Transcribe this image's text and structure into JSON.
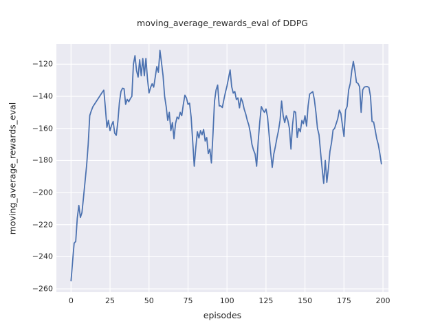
{
  "title": "moving_average_rewards_eval of DDPG",
  "chart_data": {
    "type": "line",
    "title": "moving_average_rewards_eval of DDPG",
    "xlabel": "episodes",
    "ylabel": "moving_average_rewards_eval",
    "x_ticks": [
      0,
      25,
      50,
      75,
      100,
      125,
      150,
      175,
      200
    ],
    "y_ticks": [
      -120,
      -140,
      -160,
      -180,
      -200,
      -220,
      -240,
      -260
    ],
    "xlim": [
      -9.4,
      203.5
    ],
    "ylim": [
      -262.1,
      -107.4
    ],
    "grid": true,
    "legend": false,
    "grid_color": "#ffffff",
    "axes_background": "#eaeaf2",
    "line_color": "#4c72b0",
    "series": [
      {
        "name": "moving_average_rewards_eval",
        "x_is_index": true,
        "values": [
          -255.0,
          -243.0,
          -231.5,
          -230.5,
          -216.0,
          -208.0,
          -215.5,
          -212.5,
          -203.0,
          -193.0,
          -183.0,
          -170.0,
          -152.0,
          -149.0,
          -146.5,
          -145.0,
          -143.5,
          -142.0,
          -140.5,
          -139.0,
          -137.5,
          -136.2,
          -147.0,
          -159.3,
          -155.0,
          -161.4,
          -158.0,
          -155.7,
          -163.0,
          -164.3,
          -156.0,
          -144.0,
          -137.0,
          -135.0,
          -135.3,
          -145.0,
          -141.9,
          -143.4,
          -141.5,
          -140.0,
          -120.0,
          -114.7,
          -124.0,
          -128.0,
          -117.2,
          -127.2,
          -116.4,
          -127.2,
          -116.4,
          -129.0,
          -137.9,
          -134.5,
          -132.2,
          -134.3,
          -128.0,
          -121.5,
          -125.0,
          -111.4,
          -119.0,
          -127.2,
          -140.0,
          -146.4,
          -155.0,
          -150.0,
          -161.4,
          -156.4,
          -166.4,
          -157.0,
          -152.9,
          -154.0,
          -150.0,
          -152.1,
          -145.0,
          -139.3,
          -141.0,
          -145.0,
          -144.3,
          -152.9,
          -168.0,
          -183.6,
          -172.0,
          -162.1,
          -166.0,
          -161.4,
          -164.0,
          -160.7,
          -167.9,
          -165.7,
          -175.7,
          -173.0,
          -181.5,
          -163.6,
          -143.0,
          -136.0,
          -133.0,
          -146.0,
          -146.0,
          -147.0,
          -142.0,
          -137.5,
          -133.5,
          -128.5,
          -123.6,
          -134.0,
          -138.0,
          -137.0,
          -142.0,
          -141.0,
          -147.2,
          -141.0,
          -143.5,
          -148.0,
          -151.0,
          -155.0,
          -158.0,
          -163.0,
          -170.0,
          -173.5,
          -176.0,
          -183.6,
          -168.0,
          -156.0,
          -146.4,
          -148.5,
          -150.0,
          -147.9,
          -153.0,
          -164.0,
          -175.0,
          -184.3,
          -176.0,
          -171.4,
          -166.0,
          -161.4,
          -155.0,
          -143.0,
          -152.0,
          -156.4,
          -152.1,
          -155.0,
          -160.0,
          -172.9,
          -158.0,
          -149.3,
          -150.0,
          -165.7,
          -160.0,
          -162.1,
          -155.0,
          -157.1,
          -152.1,
          -158.6,
          -146.0,
          -138.6,
          -137.8,
          -137.1,
          -142.0,
          -150.0,
          -160.0,
          -164.0,
          -175.0,
          -185.0,
          -194.3,
          -180.0,
          -193.6,
          -185.0,
          -174.3,
          -169.0,
          -161.0,
          -160.0,
          -157.0,
          -154.0,
          -148.6,
          -150.7,
          -158.0,
          -165.0,
          -148.6,
          -146.4,
          -136.0,
          -132.1,
          -124.0,
          -118.3,
          -124.0,
          -131.4,
          -132.0,
          -134.0,
          -150.0,
          -136.0,
          -134.3,
          -134.0,
          -134.0,
          -134.5,
          -140.0,
          -155.7,
          -156.0,
          -161.0,
          -166.4,
          -170.0,
          -175.7,
          -182.1
        ]
      }
    ]
  }
}
